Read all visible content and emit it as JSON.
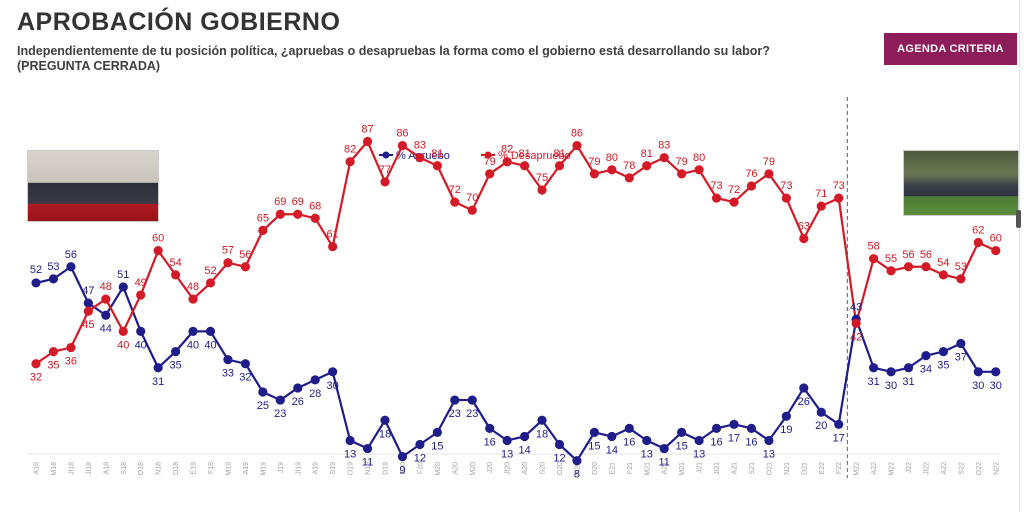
{
  "header": {
    "title": "APROBACIÓN GOBIERNO",
    "subtitle": "Independientemente de tu posición política, ¿apruebas o desapruebas la forma como el gobierno está desarrollando su labor?",
    "subtitle2": "(PREGUNTA CERRADA)",
    "brand_button": "AGENDA CRITERIA"
  },
  "colors": {
    "aprueba": "#1f1d8a",
    "desaprueba": "#d31a26",
    "brand": "#8c1c5a"
  },
  "chart_data": {
    "type": "line",
    "legend_position": "top-center",
    "grid": false,
    "ylim": [
      0,
      100
    ],
    "categories": [
      "A18",
      "M18",
      "Jl18",
      "Jl18",
      "A18",
      "S18",
      "O18",
      "N18",
      "D18",
      "E19",
      "F19",
      "M19",
      "A19",
      "M19",
      "J19",
      "Jl19",
      "A19",
      "S19",
      "O19",
      "N19",
      "D19",
      "E20",
      "F20",
      "M20",
      "A20",
      "M20",
      "J20",
      "Jl20",
      "A20",
      "S20",
      "O20",
      "N20",
      "D20",
      "E21",
      "F21",
      "M21",
      "A21",
      "M21",
      "J21",
      "Jl21",
      "A21",
      "S21",
      "O21",
      "N21",
      "D21",
      "E22",
      "F22",
      "M22",
      "A22",
      "M22",
      "J22",
      "Jl22",
      "A22",
      "S22",
      "O22",
      "N22"
    ],
    "series": [
      {
        "name": "% Apruebo",
        "values": [
          52,
          53,
          56,
          47,
          44,
          51,
          40,
          31,
          35,
          40,
          40,
          33,
          32,
          25,
          23,
          26,
          28,
          30,
          13,
          11,
          18,
          9,
          12,
          15,
          23,
          23,
          16,
          13,
          14,
          18,
          12,
          8,
          15,
          14,
          16,
          13,
          11,
          15,
          13,
          16,
          17,
          16,
          13,
          19,
          26,
          20,
          17,
          43,
          31,
          30,
          31,
          34,
          35,
          37,
          30,
          30
        ]
      },
      {
        "name": "% Desapruebo",
        "values": [
          32,
          35,
          36,
          45,
          48,
          40,
          49,
          60,
          54,
          48,
          52,
          57,
          56,
          65,
          69,
          69,
          68,
          61,
          82,
          87,
          77,
          86,
          83,
          81,
          72,
          70,
          79,
          82,
          81,
          75,
          81,
          86,
          79,
          80,
          78,
          81,
          83,
          79,
          80,
          73,
          72,
          76,
          79,
          73,
          63,
          71,
          73,
          42,
          58,
          55,
          56,
          56,
          54,
          53,
          62,
          60
        ]
      }
    ],
    "divider_after_index": 46
  }
}
